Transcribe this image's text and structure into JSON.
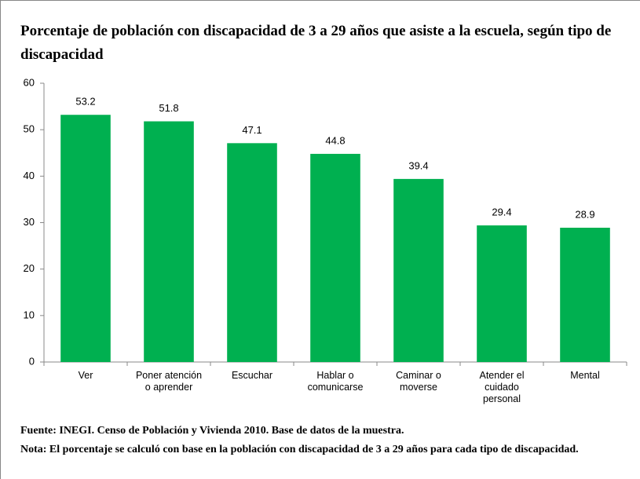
{
  "chart_data": {
    "type": "bar",
    "title": "Porcentaje de población con discapacidad de 3 a 29 años que asiste a la escuela, según tipo de discapacidad",
    "categories": [
      "Ver",
      "Poner atención o aprender",
      "Escuchar",
      "Hablar o comunicarse",
      "Caminar o moverse",
      "Atender el cuidado personal",
      "Mental"
    ],
    "values": [
      53.2,
      51.8,
      47.1,
      44.8,
      39.4,
      29.4,
      28.9
    ],
    "color": "#00b050",
    "ylim": [
      0,
      60
    ],
    "yticks": [
      0,
      10,
      20,
      30,
      40,
      50,
      60
    ],
    "grid": false,
    "source": "Fuente: INEGI. Censo de Población y Vivienda 2010. Base de datos de la muestra.",
    "note": "Nota: El porcentaje se calculó con base en la población con discapacidad de 3 a 29 años para cada tipo de discapacidad."
  }
}
